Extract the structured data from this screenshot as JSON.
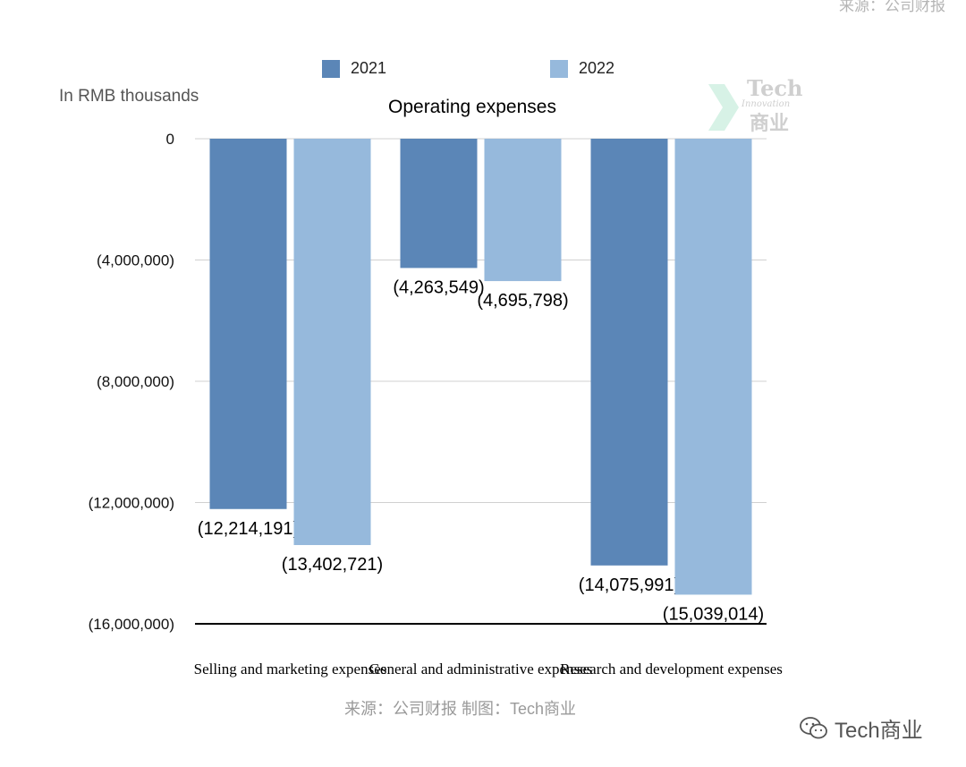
{
  "top_source_text": "来源：公司财报",
  "legend": [
    {
      "label": "2021",
      "color": "#5b86b7"
    },
    {
      "label": "2022",
      "color": "#96b9dc"
    }
  ],
  "units_label": "In RMB thousands",
  "watermark": {
    "line1": "Tech",
    "line2": "Innovation",
    "line3": "商业"
  },
  "source_text": "来源：公司财报 制图：Tech商业",
  "wechat_label": "Tech商业",
  "chart_data": {
    "type": "bar",
    "title": "Operating expenses",
    "categories": [
      "Selling and marketing expenses",
      "General and administrative expenses",
      "Research and development expenses"
    ],
    "series": [
      {
        "name": "2021",
        "color": "#5b86b7",
        "values": [
          -12214191,
          -4263549,
          -14075991
        ],
        "labels": [
          "(12,214,191)",
          "(4,263,549)",
          "(14,075,991)"
        ]
      },
      {
        "name": "2022",
        "color": "#96b9dc",
        "values": [
          -13402721,
          -4695798,
          -15039014
        ],
        "labels": [
          "(13,402,721)",
          "(4,695,798)",
          "(15,039,014)"
        ]
      }
    ],
    "ylim": [
      -16000000,
      0
    ],
    "yticks": [
      0,
      -4000000,
      -8000000,
      -12000000,
      -16000000
    ],
    "ytick_labels": [
      "0",
      "(4,000,000)",
      "(8,000,000)",
      "(12,000,000)",
      "(16,000,000)"
    ],
    "grid": true
  }
}
